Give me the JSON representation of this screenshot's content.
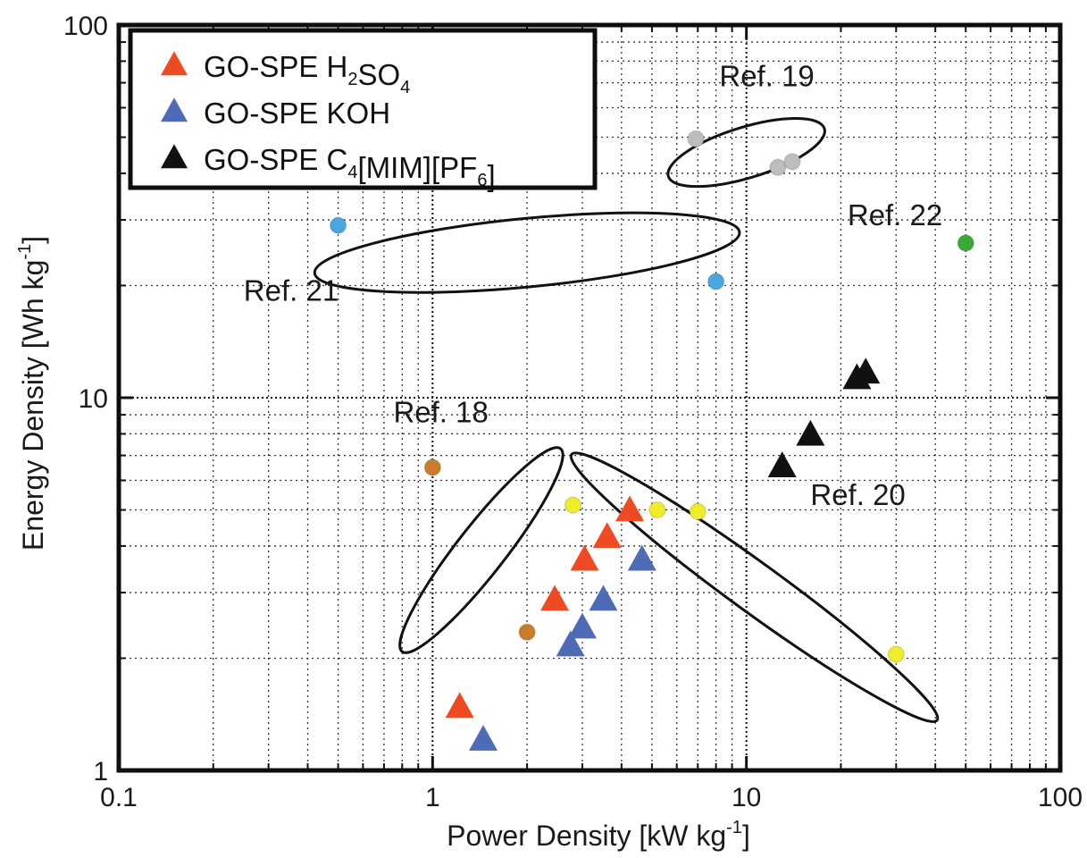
{
  "chart_data": {
    "type": "scatter",
    "xscale": "log",
    "yscale": "log",
    "xlim": [
      0.1,
      100
    ],
    "ylim": [
      1,
      100
    ],
    "xlabel": {
      "main": "Power Density [kW kg",
      "sup": "-1",
      "end": "]"
    },
    "ylabel": {
      "main": "Energy Density [Wh kg",
      "sup": "-1",
      "end": "]"
    },
    "xticks": [
      {
        "value": 0.1,
        "label": "0.1"
      },
      {
        "value": 1,
        "label": "1"
      },
      {
        "value": 10,
        "label": "10"
      },
      {
        "value": 100,
        "label": "100"
      }
    ],
    "yticks": [
      {
        "value": 1,
        "label": "1"
      },
      {
        "value": 10,
        "label": "10"
      },
      {
        "value": 100,
        "label": "100"
      }
    ],
    "grid": true,
    "legend_position": "top-left",
    "series": [
      {
        "name": "GO-SPE H2SO4",
        "legend": [
          {
            "t": "GO-SPE   H"
          },
          {
            "t": "2",
            "sub": true
          },
          {
            "t": "SO"
          },
          {
            "t": "4",
            "sub": true
          }
        ],
        "marker": "triangle",
        "color": "#ee4b24",
        "points": [
          [
            1.22,
            1.47
          ],
          [
            2.45,
            2.85
          ],
          [
            3.05,
            3.65
          ],
          [
            3.6,
            4.2
          ],
          [
            4.25,
            4.95
          ]
        ]
      },
      {
        "name": "GO-SPE KOH",
        "legend": [
          {
            "t": "GO-SPE   KOH"
          }
        ],
        "marker": "triangle",
        "color": "#4e6cb6",
        "points": [
          [
            1.45,
            1.2
          ],
          [
            2.75,
            2.15
          ],
          [
            3.0,
            2.4
          ],
          [
            3.5,
            2.85
          ],
          [
            4.65,
            3.65
          ]
        ]
      },
      {
        "name": "GO-SPE C4[MIM][PF6]",
        "legend": [
          {
            "t": "GO-SPE   C"
          },
          {
            "t": "4",
            "sub": true
          },
          {
            "t": "[MIM][PF"
          },
          {
            "t": "6",
            "sub": true
          },
          {
            "t": "]"
          }
        ],
        "marker": "triangle",
        "color": "#111111",
        "points": [
          [
            13.0,
            6.5
          ],
          [
            16.0,
            7.9
          ],
          [
            22.5,
            11.2
          ],
          [
            24.0,
            11.6
          ]
        ]
      }
    ],
    "references": [
      {
        "label": "Ref. 19",
        "color": "#bdbdbd",
        "points": [
          [
            6.9,
            49.5
          ],
          [
            12.6,
            41.5
          ],
          [
            14.0,
            43.0
          ]
        ],
        "ellipse": {
          "cx": 10.0,
          "cy": 45.5,
          "rx_dec": 0.26,
          "ry_dec": 0.068,
          "angle": 17
        },
        "label_at": [
          8.2,
          68.5
        ]
      },
      {
        "label": "Ref. 21",
        "color": "#4aa7df",
        "points": [
          [
            0.5,
            29.0
          ],
          [
            8.0,
            20.5
          ]
        ],
        "ellipse": {
          "cx": 2.0,
          "cy": 24.5,
          "rx_dec": 0.68,
          "ry_dec": 0.092,
          "angle": 5.5
        },
        "label_at": [
          0.25,
          18.2
        ]
      },
      {
        "label": "Ref. 22",
        "color": "#3aaa36",
        "points": [
          [
            50.0,
            26.0
          ]
        ],
        "ellipse": null,
        "label_at": [
          21.0,
          29.0
        ]
      },
      {
        "label": "Ref. 18",
        "color": "#c97d2a",
        "points": [
          [
            1.0,
            6.5
          ],
          [
            2.0,
            2.35
          ]
        ],
        "ellipse": {
          "cx": 1.43,
          "cy": 3.9,
          "rx_dec": 0.41,
          "ry_dec": 0.065,
          "angle": 52
        },
        "label_at": [
          0.75,
          8.6
        ]
      },
      {
        "label": "Ref. 20",
        "color": "#eded2a",
        "points": [
          [
            2.8,
            5.15
          ],
          [
            5.2,
            5.0
          ],
          [
            7.0,
            4.95
          ],
          [
            30.0,
            2.05
          ]
        ],
        "ellipse": {
          "cx": 10.6,
          "cy": 3.1,
          "rx_dec": 0.72,
          "ry_dec": 0.066,
          "angle": -36
        },
        "label_at": [
          16.0,
          5.15
        ]
      }
    ]
  }
}
